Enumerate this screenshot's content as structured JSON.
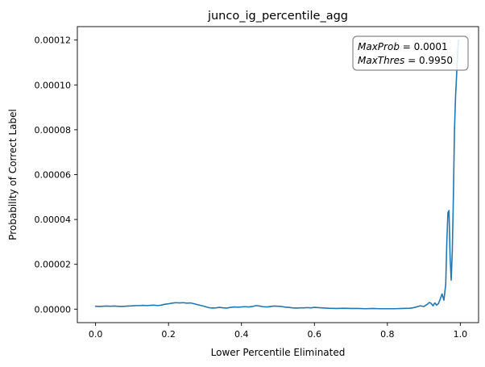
{
  "chart_data": {
    "type": "line",
    "title": "junco_ig_percentile_agg",
    "xlabel": "Lower Percentile Eliminated",
    "ylabel": "Probability of Correct Label",
    "xlim": [
      -0.05,
      1.05
    ],
    "ylim": [
      -6e-06,
      0.000126
    ],
    "x_ticks": [
      0.0,
      0.2,
      0.4,
      0.6,
      0.8,
      1.0
    ],
    "x_tick_labels": [
      "0.0",
      "0.2",
      "0.4",
      "0.6",
      "0.8",
      "1.0"
    ],
    "y_ticks": [
      0,
      2e-05,
      4e-05,
      6e-05,
      8e-05,
      0.0001,
      0.00012
    ],
    "y_tick_labels": [
      "0.00000",
      "0.00002",
      "0.00004",
      "0.00006",
      "0.00008",
      "0.00010",
      "0.00012"
    ],
    "grid": false,
    "line_color": "#1f77b4",
    "annotation": {
      "position": "top-right",
      "line1_italic": "MaxProb",
      "line1_value": " = 0.0001",
      "line2_italic": "MaxThres",
      "line2_value": " = 0.9950"
    },
    "series": [
      {
        "x": [
          0.0,
          0.01,
          0.02,
          0.03,
          0.04,
          0.05,
          0.06,
          0.07,
          0.08,
          0.09,
          0.1,
          0.11,
          0.12,
          0.13,
          0.14,
          0.15,
          0.16,
          0.17,
          0.18,
          0.19,
          0.2,
          0.21,
          0.22,
          0.23,
          0.24,
          0.25,
          0.26,
          0.27,
          0.28,
          0.29,
          0.3,
          0.31,
          0.32,
          0.33,
          0.34,
          0.35,
          0.36,
          0.37,
          0.38,
          0.39,
          0.4,
          0.41,
          0.42,
          0.43,
          0.44,
          0.45,
          0.46,
          0.47,
          0.48,
          0.49,
          0.5,
          0.51,
          0.52,
          0.53,
          0.54,
          0.55,
          0.56,
          0.57,
          0.58,
          0.59,
          0.6,
          0.62,
          0.64,
          0.66,
          0.68,
          0.7,
          0.72,
          0.74,
          0.76,
          0.78,
          0.8,
          0.82,
          0.84,
          0.86,
          0.87,
          0.88,
          0.89,
          0.9,
          0.91,
          0.915,
          0.92,
          0.925,
          0.93,
          0.935,
          0.94,
          0.945,
          0.95,
          0.955,
          0.96,
          0.963,
          0.966,
          0.969,
          0.972,
          0.975,
          0.978,
          0.981,
          0.984,
          0.987,
          0.99,
          0.993,
          0.995
        ],
        "y": [
          1.3e-06,
          1.2e-06,
          1.3e-06,
          1.4e-06,
          1.3e-06,
          1.4e-06,
          1.3e-06,
          1.2e-06,
          1.3e-06,
          1.4e-06,
          1.5e-06,
          1.6e-06,
          1.6e-06,
          1.7e-06,
          1.6e-06,
          1.7e-06,
          1.8e-06,
          1.6e-06,
          1.8e-06,
          2.2e-06,
          2.4e-06,
          2.7e-06,
          2.9e-06,
          2.8e-06,
          2.9e-06,
          2.7e-06,
          2.8e-06,
          2.4e-06,
          2e-06,
          1.6e-06,
          1.2e-06,
          7e-07,
          5e-07,
          6e-07,
          8e-07,
          6e-07,
          5e-07,
          8e-07,
          1e-06,
          9e-07,
          1e-06,
          1.1e-06,
          1e-06,
          1.2e-06,
          1.6e-06,
          1.4e-06,
          1.1e-06,
          1e-06,
          1.2e-06,
          1.4e-06,
          1.3e-06,
          1.2e-06,
          9e-07,
          8e-07,
          6e-07,
          5e-07,
          6e-07,
          6e-07,
          7e-07,
          6e-07,
          8e-07,
          6e-07,
          4e-07,
          3e-07,
          4e-07,
          3e-07,
          3e-07,
          2e-07,
          3e-07,
          2e-07,
          2e-07,
          2e-07,
          3e-07,
          4e-07,
          6e-07,
          1e-06,
          1.5e-06,
          1.2e-06,
          2.2e-06,
          3e-06,
          2.6e-06,
          1.5e-06,
          2.8e-06,
          1.8e-06,
          2.5e-06,
          4.5e-06,
          6.8e-06,
          4e-06,
          1.1e-05,
          3e-05,
          4.3e-05,
          4.4e-05,
          2.3e-05,
          1.3e-05,
          2.6e-05,
          5e-05,
          8e-05,
          9.5e-05,
          0.000105,
          0.000115,
          0.00012
        ]
      }
    ]
  }
}
